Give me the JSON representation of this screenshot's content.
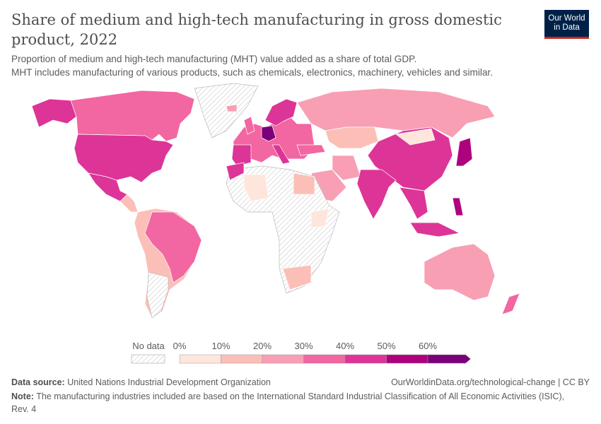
{
  "header": {
    "title": "Share of medium and high-tech manufacturing in gross domestic product, 2022",
    "subtitle_line1": "Proportion of medium and high-tech manufacturing (MHT) value added as a share of total GDP.",
    "subtitle_line2": "MHT includes manufacturing of various products, such as chemicals, electronics, machinery, vehicles and similar.",
    "logo_line1": "Our World",
    "logo_line2": "in Data"
  },
  "legend": {
    "no_data_label": "No data",
    "ticks": [
      "0%",
      "10%",
      "20%",
      "30%",
      "40%",
      "50%",
      "60%"
    ],
    "bins": [
      {
        "range": "0-10%",
        "color": "#fee6dc"
      },
      {
        "range": "10-20%",
        "color": "#fbbfb7"
      },
      {
        "range": "20-30%",
        "color": "#f89fb4"
      },
      {
        "range": "30-40%",
        "color": "#f266a1"
      },
      {
        "range": "40-50%",
        "color": "#dd3497"
      },
      {
        "range": "50-60%",
        "color": "#ae017e"
      },
      {
        "range": ">60%",
        "color": "#7a0177"
      }
    ],
    "no_data_color": "#e8e8e8"
  },
  "map_data": [
    {
      "region": "Greenland",
      "bin": null
    },
    {
      "region": "Alaska",
      "bin": "40-50%"
    },
    {
      "region": "Canada",
      "bin": "30-40%"
    },
    {
      "region": "United States",
      "bin": "40-50%"
    },
    {
      "region": "Mexico",
      "bin": "40-50%"
    },
    {
      "region": "Central America",
      "bin": "10-20%"
    },
    {
      "region": "South America (other)",
      "bin": "10-20%"
    },
    {
      "region": "Brazil",
      "bin": "30-40%"
    },
    {
      "region": "Argentina",
      "bin": null
    },
    {
      "region": "Europe (other)",
      "bin": "30-40%"
    },
    {
      "region": "Scandinavia",
      "bin": "40-50%"
    },
    {
      "region": "United Kingdom",
      "bin": "30-40%"
    },
    {
      "region": "Iceland",
      "bin": "20-30%"
    },
    {
      "region": "Iberia",
      "bin": "40-50%"
    },
    {
      "region": "Italy",
      "bin": "40-50%"
    },
    {
      "region": "Germany",
      "bin": ">60%"
    },
    {
      "region": "Russia",
      "bin": "20-30%"
    },
    {
      "region": "Kazakhstan",
      "bin": "10-20%"
    },
    {
      "region": "China",
      "bin": "40-50%"
    },
    {
      "region": "Mongolia",
      "bin": "0-10%"
    },
    {
      "region": "Turkey",
      "bin": "30-40%"
    },
    {
      "region": "Iran",
      "bin": "20-30%"
    },
    {
      "region": "Saudi Arabia",
      "bin": "20-30%"
    },
    {
      "region": "India",
      "bin": "40-50%"
    },
    {
      "region": "Southeast Asia",
      "bin": "40-50%"
    },
    {
      "region": "Malaysia/Indonesia",
      "bin": "40-50%"
    },
    {
      "region": "Philippines",
      "bin": "50-60%"
    },
    {
      "region": "Japan",
      "bin": "50-60%"
    },
    {
      "region": "Australia",
      "bin": "20-30%"
    },
    {
      "region": "New Zealand",
      "bin": "30-40%"
    },
    {
      "region": "Africa (other)",
      "bin": null
    },
    {
      "region": "Egypt",
      "bin": "10-20%"
    },
    {
      "region": "Morocco",
      "bin": "40-50%"
    },
    {
      "region": "Algeria",
      "bin": "0-10%"
    },
    {
      "region": "South Africa",
      "bin": "10-20%"
    },
    {
      "region": "East Africa",
      "bin": "0-10%"
    }
  ],
  "footer": {
    "source_label": "Data source:",
    "source": "United Nations Industrial Development Organization",
    "link": "OurWorldinData.org/technological-change | CC BY",
    "note_label": "Note:",
    "note": "The manufacturing industries included are based on the International Standard Industrial Classification of All Economic Activities (ISIC), Rev. 4"
  }
}
